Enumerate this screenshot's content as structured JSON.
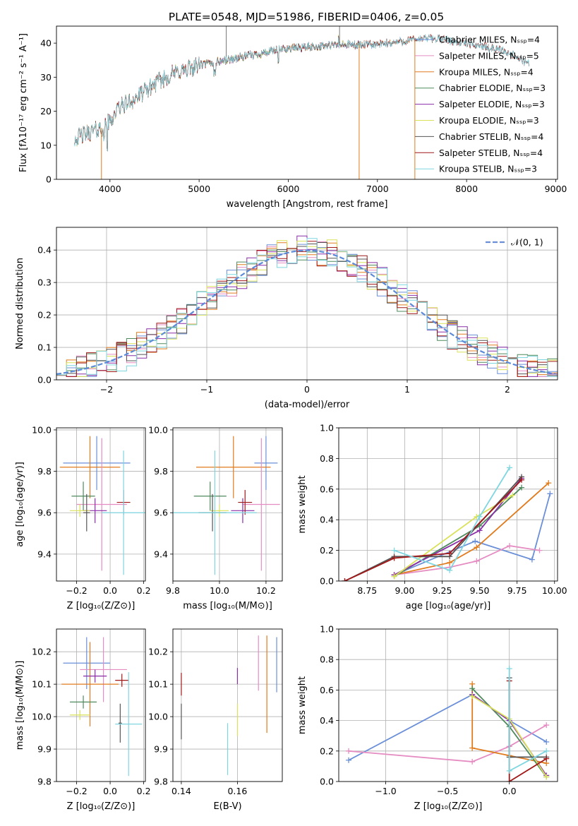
{
  "figure_title": "PLATE=0548, MJD=51986, FIBERID=0406, z=0.05",
  "colors": {
    "Chabrier MILES": "#6a8fd8",
    "Salpeter MILES": "#e58cc2",
    "Kroupa MILES": "#e07b1e",
    "Chabrier ELODIE": "#4f8a5c",
    "Salpeter ELODIE": "#8a2ea8",
    "Kroupa ELODIE": "#d9e25a",
    "Chabrier STELIB": "#555555",
    "Salpeter STELIB": "#a01818",
    "Kroupa STELIB": "#7fd6e0"
  },
  "chart_data": [
    {
      "id": "spectrum",
      "type": "line",
      "xlabel": "wavelength [Angstrom, rest frame]",
      "ylabel": "Flux [fλ10⁻¹⁷ erg cm⁻² s⁻¹ A⁻¹]",
      "xlim": [
        3400,
        9020
      ],
      "ylim": [
        0,
        45
      ],
      "xticks": [
        4000,
        5000,
        6000,
        7000,
        8000,
        9000
      ],
      "yticks": [
        0,
        10,
        20,
        30,
        40
      ],
      "grid": false,
      "legend_position": "upper-right",
      "legend": [
        {
          "model": "Chabrier MILES",
          "label": "Chabrier MILES, Nₛₛₚ=4"
        },
        {
          "model": "Salpeter MILES",
          "label": "Salpeter MILES, Nₛₛₚ=5"
        },
        {
          "model": "Kroupa MILES",
          "label": "Kroupa MILES, Nₛₛₚ=4"
        },
        {
          "model": "Chabrier ELODIE",
          "label": "Chabrier ELODIE, Nₛₛₚ=3"
        },
        {
          "model": "Salpeter ELODIE",
          "label": "Salpeter ELODIE, Nₛₛₚ=3"
        },
        {
          "model": "Kroupa ELODIE",
          "label": "Kroupa ELODIE, Nₛₛₚ=3"
        },
        {
          "model": "Chabrier STELIB",
          "label": "Chabrier STELIB, Nₛₛₚ=4"
        },
        {
          "model": "Salpeter STELIB",
          "label": "Salpeter STELIB, Nₛₛₚ=4"
        },
        {
          "model": "Kroupa STELIB",
          "label": "Kroupa STELIB, Nₛₛₚ=3"
        }
      ],
      "continuum": {
        "x": [
          3600,
          3800,
          3900,
          4000,
          4100,
          4300,
          4500,
          4700,
          5000,
          5300,
          5600,
          6000,
          6300,
          6600,
          7000,
          7400,
          7600,
          8000,
          8400,
          8700
        ],
        "y": [
          12,
          14,
          15,
          17,
          21,
          24,
          28,
          31,
          33.5,
          35,
          36.5,
          38.5,
          39,
          39.5,
          39.5,
          41,
          41.5,
          40,
          38,
          34
        ]
      },
      "model_range": {
        "Chabrier MILES": [
          3600,
          7420
        ],
        "Salpeter MILES": [
          3600,
          7420
        ],
        "Kroupa MILES": [
          3600,
          7420
        ],
        "Chabrier ELODIE": [
          3600,
          6800
        ],
        "Salpeter ELODIE": [
          3600,
          6800
        ],
        "Kroupa ELODIE": [
          3600,
          6800
        ],
        "Chabrier STELIB": [
          3600,
          8700
        ],
        "Salpeter STELIB": [
          3600,
          8700
        ],
        "Kroupa STELIB": [
          3600,
          8700
        ]
      }
    },
    {
      "id": "residuals",
      "type": "line",
      "xlabel": "(data-model)/error",
      "ylabel": "Normed distribution",
      "xlim": [
        -2.5,
        2.5
      ],
      "ylim": [
        0,
        0.47
      ],
      "xticks": [
        -2,
        -1,
        0,
        1,
        2
      ],
      "yticks": [
        0.0,
        0.1,
        0.2,
        0.3,
        0.4
      ],
      "grid": true,
      "legend_position": "upper-right",
      "legend": [
        {
          "label": "𝒩(0, 1)",
          "color": "#6a8fd8",
          "style": "dashed"
        }
      ]
    },
    {
      "id": "age-vs-Z",
      "type": "scatter",
      "xlabel": "Z [log₁₀(Z/Z⊙)]",
      "ylabel": "age  [log₁₀(age/yr)]",
      "xlim": [
        -0.32,
        0.21
      ],
      "ylim": [
        9.27,
        10.01
      ],
      "xticks": [
        -0.2,
        0.0,
        0.2
      ],
      "yticks": [
        9.4,
        9.6,
        9.8,
        10.0
      ],
      "grid": true,
      "points": [
        {
          "model": "Chabrier MILES",
          "x": -0.08,
          "xerr": 0.2,
          "y": 9.84,
          "yerr": 0.13
        },
        {
          "model": "Kroupa MILES",
          "x": -0.12,
          "xerr": 0.18,
          "y": 9.82,
          "yerr": 0.15
        },
        {
          "model": "Salpeter MILES",
          "x": -0.05,
          "xerr": 0.15,
          "y": 9.64,
          "yerr": 0.32
        },
        {
          "model": "Chabrier ELODIE",
          "x": -0.16,
          "xerr": 0.07,
          "y": 9.68,
          "yerr": 0.07
        },
        {
          "model": "Salpeter ELODIE",
          "x": -0.09,
          "xerr": 0.07,
          "y": 9.61,
          "yerr": 0.06
        },
        {
          "model": "Kroupa ELODIE",
          "x": -0.18,
          "xerr": 0.06,
          "y": 9.61,
          "yerr": 0.03
        },
        {
          "model": "Chabrier STELIB",
          "x": -0.14,
          "xerr": 0.02,
          "y": 9.6,
          "yerr": 0.09
        },
        {
          "model": "Salpeter STELIB",
          "x": 0.08,
          "xerr": 0.04,
          "y": 9.65,
          "yerr": 0.06
        },
        {
          "model": "Kroupa STELIB",
          "x": 0.08,
          "xerr": 0.13,
          "y": 9.6,
          "yerr": 0.3
        }
      ]
    },
    {
      "id": "age-vs-mass",
      "type": "scatter",
      "xlabel": "mass [log₁₀(M/M⊙)]",
      "xlim": [
        9.8,
        10.27
      ],
      "ylim": [
        9.27,
        10.01
      ],
      "xticks": [
        9.8,
        10.0,
        10.2
      ],
      "yticks": [
        9.4,
        9.6,
        9.8,
        10.0
      ],
      "grid": true,
      "points": [
        {
          "model": "Chabrier MILES",
          "x": 10.2,
          "xerr": 0.05,
          "y": 9.84,
          "yerr": 0.13
        },
        {
          "model": "Kroupa MILES",
          "x": 10.06,
          "xerr": 0.16,
          "y": 9.82,
          "yerr": 0.15
        },
        {
          "model": "Salpeter MILES",
          "x": 10.18,
          "xerr": 0.08,
          "y": 9.64,
          "yerr": 0.32
        },
        {
          "model": "Chabrier ELODIE",
          "x": 9.96,
          "xerr": 0.07,
          "y": 9.68,
          "yerr": 0.07
        },
        {
          "model": "Salpeter ELODIE",
          "x": 10.1,
          "xerr": 0.05,
          "y": 9.61,
          "yerr": 0.06
        },
        {
          "model": "Kroupa ELODIE",
          "x": 10.0,
          "xerr": 0.04,
          "y": 9.61,
          "yerr": 0.03
        },
        {
          "model": "Chabrier STELIB",
          "x": 9.97,
          "xerr": 0.06,
          "y": 9.6,
          "yerr": 0.09
        },
        {
          "model": "Salpeter STELIB",
          "x": 10.11,
          "xerr": 0.03,
          "y": 9.65,
          "yerr": 0.06
        },
        {
          "model": "Kroupa STELIB",
          "x": 9.98,
          "xerr": 0.18,
          "y": 9.6,
          "yerr": 0.3
        }
      ]
    },
    {
      "id": "mass-weight-vs-age",
      "type": "line",
      "xlabel": "age  [log₁₀(age/yr)]",
      "ylabel": "mass weight",
      "xlim": [
        8.56,
        10.02
      ],
      "ylim": [
        0,
        1
      ],
      "xticks": [
        8.75,
        9.0,
        9.25,
        9.5,
        9.75,
        10.0
      ],
      "yticks": [
        0.0,
        0.2,
        0.4,
        0.6,
        0.8,
        1.0
      ],
      "grid": true,
      "series": [
        {
          "model": "Chabrier MILES",
          "x": [
            8.93,
            9.47,
            9.85,
            9.97
          ],
          "y": [
            0.04,
            0.26,
            0.14,
            0.57
          ]
        },
        {
          "model": "Salpeter MILES",
          "x": [
            8.93,
            9.3,
            9.48,
            9.7,
            9.9
          ],
          "y": [
            0.04,
            0.09,
            0.13,
            0.23,
            0.2
          ]
        },
        {
          "model": "Kroupa MILES",
          "x": [
            8.93,
            9.3,
            9.48,
            9.96
          ],
          "y": [
            0.04,
            0.12,
            0.22,
            0.64
          ]
        },
        {
          "model": "Chabrier ELODIE",
          "x": [
            8.93,
            9.5,
            9.78
          ],
          "y": [
            0.03,
            0.36,
            0.61
          ]
        },
        {
          "model": "Salpeter ELODIE",
          "x": [
            8.93,
            9.5,
            9.78
          ],
          "y": [
            0.04,
            0.33,
            0.67
          ]
        },
        {
          "model": "Kroupa ELODIE",
          "x": [
            8.93,
            9.48,
            9.72
          ],
          "y": [
            0.03,
            0.42,
            0.56
          ]
        },
        {
          "model": "Chabrier STELIB",
          "x": [
            8.6,
            8.93,
            9.3,
            9.78
          ],
          "y": [
            0.0,
            0.16,
            0.16,
            0.68
          ]
        },
        {
          "model": "Salpeter STELIB",
          "x": [
            8.6,
            8.93,
            9.3,
            9.78
          ],
          "y": [
            0.0,
            0.15,
            0.18,
            0.66
          ]
        },
        {
          "model": "Kroupa STELIB",
          "x": [
            8.93,
            9.3,
            9.5,
            9.7
          ],
          "y": [
            0.2,
            0.07,
            0.42,
            0.74
          ]
        }
      ]
    },
    {
      "id": "mass-vs-Z",
      "type": "scatter",
      "xlabel": "Z [log₁₀(Z/Z⊙)]",
      "ylabel": "mass [log₁₀(M/M⊙)]",
      "xlim": [
        -0.32,
        0.21
      ],
      "ylim": [
        9.8,
        10.27
      ],
      "xticks": [
        -0.2,
        0.0,
        0.2
      ],
      "yticks": [
        9.8,
        9.9,
        10.0,
        10.1,
        10.2
      ],
      "grid": true,
      "points": [
        {
          "model": "Chabrier MILES",
          "x": -0.14,
          "xerr": 0.14,
          "y": 10.165,
          "yerr": 0.08
        },
        {
          "model": "Salpeter MILES",
          "x": -0.04,
          "xerr": 0.14,
          "y": 10.145,
          "yerr": 0.1
        },
        {
          "model": "Kroupa MILES",
          "x": -0.12,
          "xerr": 0.17,
          "y": 10.1,
          "yerr": 0.13
        },
        {
          "model": "Chabrier ELODIE",
          "x": -0.16,
          "xerr": 0.08,
          "y": 10.045,
          "yerr": 0.02
        },
        {
          "model": "Salpeter ELODIE",
          "x": -0.09,
          "xerr": 0.07,
          "y": 10.125,
          "yerr": 0.02
        },
        {
          "model": "Kroupa ELODIE",
          "x": -0.18,
          "xerr": 0.06,
          "y": 10.005,
          "yerr": 0.015
        },
        {
          "model": "Chabrier STELIB",
          "x": 0.06,
          "xerr": 0.01,
          "y": 9.98,
          "yerr": 0.06
        },
        {
          "model": "Salpeter STELIB",
          "x": 0.07,
          "xerr": 0.04,
          "y": 10.112,
          "yerr": 0.02
        },
        {
          "model": "Kroupa STELIB",
          "x": 0.11,
          "xerr": 0.08,
          "y": 9.977,
          "yerr": 0.16
        }
      ]
    },
    {
      "id": "mass-vs-ebv",
      "type": "scatter",
      "xlabel": "E(B-V)",
      "xlim": [
        0.137,
        0.176
      ],
      "ylim": [
        9.8,
        10.27
      ],
      "xticks": [
        0.14,
        0.16
      ],
      "yticks": [
        9.8,
        9.9,
        10.0,
        10.1,
        10.2
      ],
      "grid": true,
      "points": [
        {
          "model": "Chabrier MILES",
          "x": 0.174,
          "xerr": 0,
          "y": 10.16,
          "yerr": 0.085
        },
        {
          "model": "Salpeter MILES",
          "x": 0.1675,
          "xerr": 0,
          "y": 10.165,
          "yerr": 0.085
        },
        {
          "model": "Kroupa MILES",
          "x": 0.1705,
          "xerr": 0,
          "y": 10.1,
          "yerr": 0.15
        },
        {
          "model": "Salpeter ELODIE",
          "x": 0.16,
          "xerr": 0,
          "y": 10.125,
          "yerr": 0.025
        },
        {
          "model": "Kroupa ELODIE",
          "x": 0.16,
          "xerr": 0,
          "y": 9.99,
          "yerr": 0.05
        },
        {
          "model": "Chabrier STELIB",
          "x": 0.14,
          "xerr": 0,
          "y": 9.985,
          "yerr": 0.055
        },
        {
          "model": "Salpeter STELIB",
          "x": 0.14,
          "xerr": 0,
          "y": 10.1,
          "yerr": 0.035
        },
        {
          "model": "Kroupa STELIB",
          "x": 0.1565,
          "xerr": 0,
          "y": 9.9,
          "yerr": 0.08
        }
      ]
    },
    {
      "id": "mass-weight-vs-Z",
      "type": "line",
      "xlabel": "Z [log₁₀(Z/Z⊙)]",
      "ylabel": "mass weight",
      "xlim": [
        -1.38,
        0.39
      ],
      "ylim": [
        0,
        1
      ],
      "xticks": [
        -1.0,
        -0.5,
        0.0
      ],
      "yticks": [
        0.0,
        0.2,
        0.4,
        0.6,
        0.8,
        1.0
      ],
      "grid": true,
      "series": [
        {
          "model": "Chabrier MILES",
          "x": [
            -1.3,
            -0.3,
            0.0,
            0.3
          ],
          "y": [
            0.14,
            0.57,
            0.4,
            0.26
          ]
        },
        {
          "model": "Salpeter MILES",
          "x": [
            -1.3,
            -0.3,
            0.0,
            0.3
          ],
          "y": [
            0.2,
            0.13,
            0.23,
            0.37
          ]
        },
        {
          "model": "Kroupa MILES",
          "x": [
            -0.3,
            -0.3,
            0.0,
            0.3
          ],
          "y": [
            0.64,
            0.22,
            0.17,
            0.12
          ]
        },
        {
          "model": "Chabrier ELODIE",
          "x": [
            -0.3,
            0.0,
            0.3
          ],
          "y": [
            0.61,
            0.36,
            0.03
          ]
        },
        {
          "model": "Salpeter ELODIE",
          "x": [
            -0.3,
            0.0,
            0.3
          ],
          "y": [
            0.57,
            0.4,
            0.04
          ]
        },
        {
          "model": "Kroupa ELODIE",
          "x": [
            -0.3,
            0.0,
            0.3
          ],
          "y": [
            0.56,
            0.41,
            0.03
          ]
        },
        {
          "model": "Chabrier STELIB",
          "x": [
            0.0,
            0.0,
            0.3
          ],
          "y": [
            0.68,
            0.16,
            0.16
          ]
        },
        {
          "model": "Salpeter STELIB",
          "x": [
            0.0,
            0.0,
            0.3
          ],
          "y": [
            0.66,
            0.0,
            0.15
          ]
        },
        {
          "model": "Kroupa STELIB",
          "x": [
            0.0,
            0.0,
            0.3
          ],
          "y": [
            0.74,
            0.07,
            0.2
          ]
        }
      ]
    }
  ]
}
